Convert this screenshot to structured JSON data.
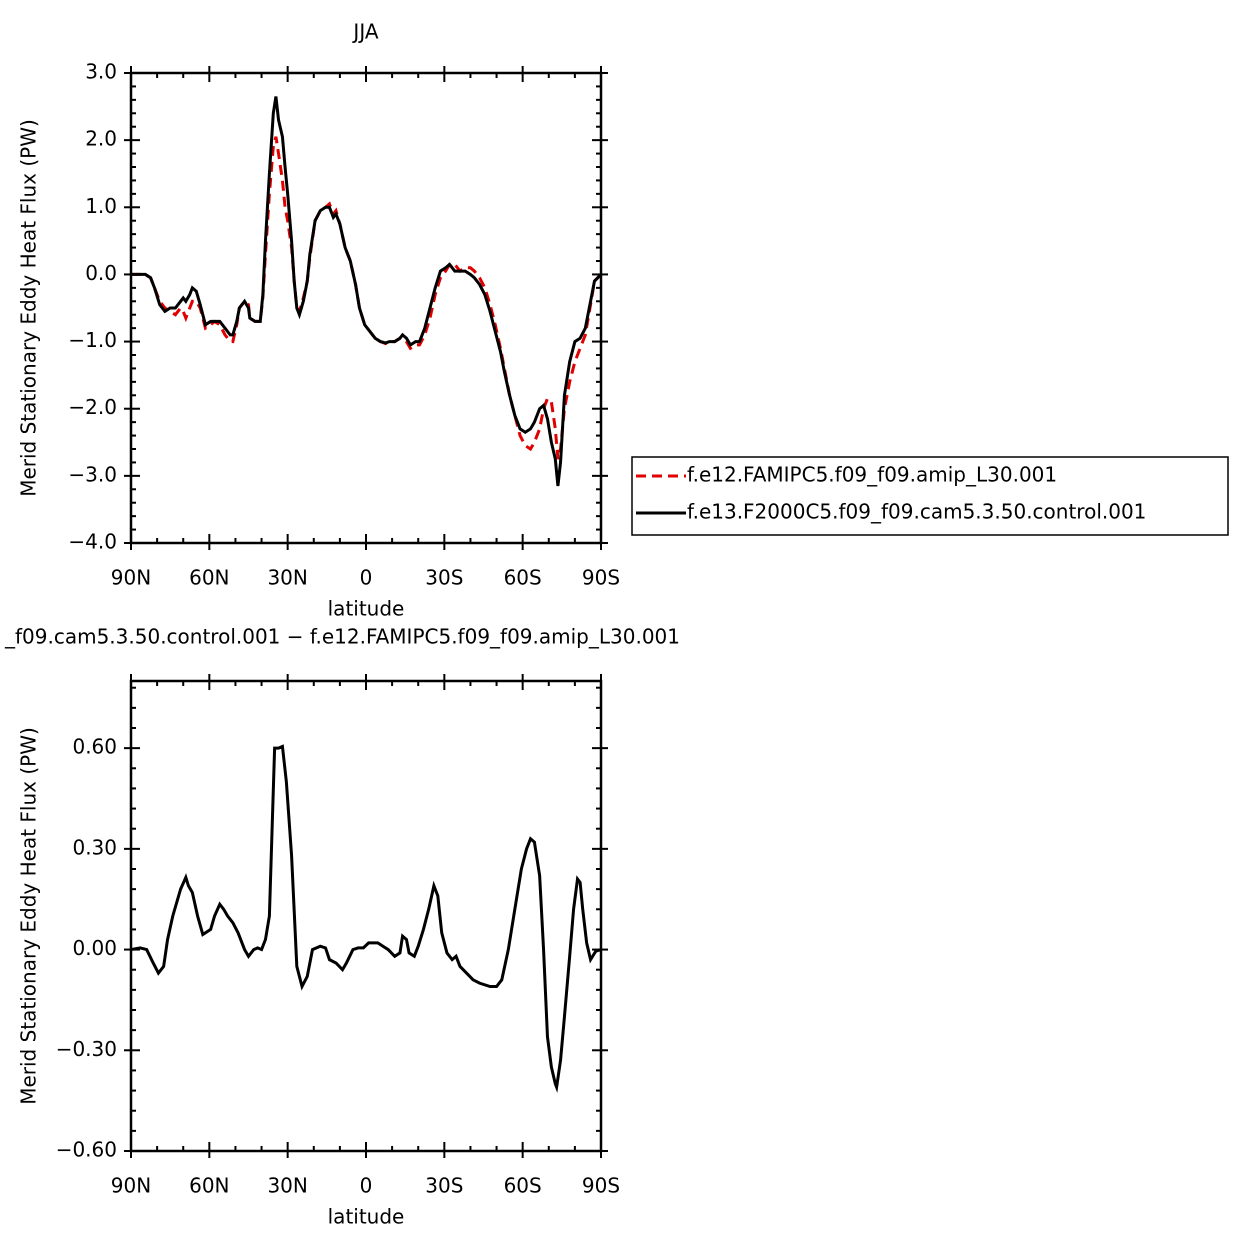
{
  "chart_data": [
    {
      "type": "line",
      "title": "JJA",
      "ylabel": "Merid Stationary Eddy Heat Flux (PW)",
      "xlabel": "latitude",
      "xlim": [
        90,
        -90
      ],
      "xticks": [
        {
          "value": 90,
          "label": "90N"
        },
        {
          "value": 60,
          "label": "60N"
        },
        {
          "value": 30,
          "label": "30N"
        },
        0,
        {
          "value": -30,
          "label": "30S"
        },
        {
          "value": -60,
          "label": "60S"
        },
        {
          "value": -90,
          "label": "90S"
        }
      ],
      "ylim": [
        -4,
        3
      ],
      "yticks": [
        {
          "value": 3,
          "label": "3.0"
        },
        {
          "value": 2,
          "label": "2.0"
        },
        {
          "value": 1,
          "label": "1.0"
        },
        {
          "value": 0,
          "label": "0.0"
        },
        {
          "value": -1,
          "label": "−1.0"
        },
        {
          "value": -2,
          "label": "−2.0"
        },
        {
          "value": -3,
          "label": "−3.0"
        },
        {
          "value": -4,
          "label": "−4.0"
        }
      ],
      "legend": "right",
      "x": [
        90,
        84.5,
        82.5,
        81,
        79,
        77,
        75,
        73,
        71,
        70,
        69,
        67.5,
        66.5,
        65,
        63.5,
        61.5,
        59.5,
        58,
        56,
        54,
        52,
        51,
        49.5,
        48.5,
        46.5,
        45,
        44.5,
        42.5,
        40.5,
        39.5,
        38.5,
        37,
        35.5,
        34.5,
        33.5,
        32,
        31,
        30,
        28.5,
        27.5,
        26.5,
        25.5,
        24,
        22.5,
        21.5,
        19.5,
        17.5,
        15.5,
        14,
        12.5,
        11.5,
        10,
        8,
        6,
        4,
        2.5,
        0.5,
        -1.5,
        -3.5,
        -5.5,
        -7.5,
        -9,
        -11,
        -13,
        -14,
        -15.5,
        -17,
        -19,
        -20.5,
        -22.5,
        -24.5,
        -26.5,
        -28.5,
        -30.5,
        -32,
        -34,
        -36,
        -38,
        -40,
        -41.5,
        -43.5,
        -45.5,
        -47.5,
        -49.5,
        -51.5,
        -53,
        -55,
        -57,
        -59,
        -61,
        -63,
        -64.5,
        -66.5,
        -68,
        -69.5,
        -71,
        -72.5,
        -73.5,
        -74.5,
        -76,
        -78,
        -80,
        -82,
        -84,
        -86,
        -87.5,
        -90
      ],
      "series": [
        {
          "name": "f.e12.FAMIPC5.f09_f09.amip_L30.001",
          "color": "#e00000",
          "line_style": "dashed",
          "values": [
            0,
            0,
            -0.05,
            -0.2,
            -0.4,
            -0.5,
            -0.55,
            -0.6,
            -0.5,
            -0.55,
            -0.65,
            -0.5,
            -0.4,
            -0.4,
            -0.5,
            -0.8,
            -0.75,
            -0.7,
            -0.75,
            -0.9,
            -1.0,
            -1.0,
            -0.75,
            -0.5,
            -0.4,
            -0.45,
            -0.65,
            -0.7,
            -0.7,
            -0.35,
            0.3,
            1.2,
            1.9,
            2.05,
            1.8,
            1.4,
            1.0,
            0.8,
            0.4,
            -0.1,
            -0.5,
            -0.55,
            -0.35,
            -0.1,
            0.25,
            0.8,
            0.95,
            1.0,
            1.05,
            0.9,
            0.95,
            0.75,
            0.4,
            0.2,
            -0.15,
            -0.5,
            -0.75,
            -0.85,
            -0.95,
            -1.0,
            -1.03,
            -1.0,
            -1.0,
            -0.95,
            -0.95,
            -1.0,
            -1.1,
            -1.05,
            -1.05,
            -0.9,
            -0.65,
            -0.3,
            -0.05,
            0.05,
            0.15,
            0.15,
            0.05,
            0.1,
            0.1,
            0.05,
            -0.05,
            -0.2,
            -0.45,
            -0.75,
            -1.1,
            -1.4,
            -1.8,
            -2.1,
            -2.4,
            -2.55,
            -2.6,
            -2.5,
            -2.3,
            -2.0,
            -1.85,
            -1.9,
            -2.3,
            -2.75,
            -2.6,
            -2.0,
            -1.6,
            -1.3,
            -1.1,
            -0.9,
            -0.45,
            -0.1,
            0
          ]
        },
        {
          "name": "f.e13.F2000C5.f09_f09.cam5.3.50.control.001",
          "color": "#000000",
          "line_style": "solid",
          "values": [
            0,
            0,
            -0.05,
            -0.2,
            -0.45,
            -0.55,
            -0.5,
            -0.5,
            -0.4,
            -0.35,
            -0.4,
            -0.3,
            -0.2,
            -0.25,
            -0.45,
            -0.75,
            -0.7,
            -0.7,
            -0.7,
            -0.8,
            -0.9,
            -0.9,
            -0.7,
            -0.5,
            -0.4,
            -0.5,
            -0.65,
            -0.7,
            -0.7,
            -0.3,
            0.5,
            1.5,
            2.4,
            2.65,
            2.3,
            2.05,
            1.6,
            1.2,
            0.5,
            -0.1,
            -0.5,
            -0.6,
            -0.4,
            -0.1,
            0.3,
            0.8,
            0.95,
            1.0,
            1.0,
            0.85,
            0.9,
            0.75,
            0.4,
            0.2,
            -0.15,
            -0.5,
            -0.75,
            -0.85,
            -0.95,
            -1.0,
            -1.02,
            -1.0,
            -1.0,
            -0.95,
            -0.9,
            -0.95,
            -1.05,
            -1.0,
            -1.0,
            -0.8,
            -0.5,
            -0.2,
            0.05,
            0.1,
            0.15,
            0.05,
            0.05,
            0.05,
            0.0,
            -0.05,
            -0.15,
            -0.3,
            -0.55,
            -0.85,
            -1.15,
            -1.45,
            -1.8,
            -2.1,
            -2.3,
            -2.35,
            -2.3,
            -2.2,
            -2.0,
            -1.95,
            -2.15,
            -2.5,
            -2.75,
            -3.15,
            -2.8,
            -1.8,
            -1.3,
            -1.0,
            -0.95,
            -0.8,
            -0.4,
            -0.1,
            0
          ]
        }
      ]
    },
    {
      "type": "line",
      "title": "_f09.cam5.3.50.control.001 − f.e12.FAMIPC5.f09_f09.amip_L30.001",
      "ylabel": "Merid Stationary Eddy Heat Flux (PW)",
      "xlabel": "latitude",
      "xlim": [
        90,
        -90
      ],
      "xticks": [
        {
          "value": 90,
          "label": "90N"
        },
        {
          "value": 60,
          "label": "60N"
        },
        {
          "value": 30,
          "label": "30N"
        },
        0,
        {
          "value": -30,
          "label": "30S"
        },
        {
          "value": -60,
          "label": "60S"
        },
        {
          "value": -90,
          "label": "90S"
        }
      ],
      "ylim": [
        -0.6,
        0.8
      ],
      "yticks": [
        {
          "value": 0.6,
          "label": "0.60"
        },
        {
          "value": 0.3,
          "label": "0.30"
        },
        {
          "value": 0,
          "label": "0.00"
        },
        {
          "value": -0.3,
          "label": "−0.30"
        },
        {
          "value": -0.6,
          "label": "−0.60"
        }
      ],
      "x": [
        90,
        86.5,
        84,
        81.5,
        79.5,
        77.5,
        76,
        74,
        71,
        69,
        68,
        66.5,
        64.5,
        62.5,
        59.5,
        58,
        56,
        54.5,
        53,
        51,
        49,
        46.5,
        45,
        43,
        41.5,
        40,
        38.5,
        37,
        35,
        33.5,
        32,
        30.5,
        28.5,
        26.5,
        24.5,
        22.5,
        20.5,
        17.5,
        15.5,
        14,
        11.5,
        9,
        7.5,
        5,
        3,
        1,
        -1,
        -2.5,
        -4.5,
        -6.5,
        -8.5,
        -11,
        -13,
        -14,
        -15.5,
        -16.5,
        -18.5,
        -20,
        -22,
        -24,
        -26,
        -27.5,
        -29,
        -31,
        -33,
        -34.5,
        -36,
        -38.5,
        -41,
        -43.5,
        -47.5,
        -50,
        -52,
        -54.5,
        -57,
        -59.5,
        -61.5,
        -63,
        -64.5,
        -66.5,
        -68,
        -69.5,
        -71,
        -72.5,
        -73,
        -74.5,
        -76,
        -78,
        -79.5,
        -81,
        -82,
        -83,
        -84.5,
        -86,
        -88,
        -90
      ],
      "series": [
        {
          "color": "#000000",
          "line_style": "solid",
          "values": [
            0,
            0.005,
            0,
            -0.04,
            -0.07,
            -0.05,
            0.03,
            0.1,
            0.18,
            0.215,
            0.19,
            0.17,
            0.1,
            0.045,
            0.06,
            0.1,
            0.135,
            0.12,
            0.1,
            0.08,
            0.05,
            0.0,
            -0.02,
            0.0,
            0.005,
            0.0,
            0.03,
            0.1,
            0.6,
            0.6,
            0.605,
            0.5,
            0.28,
            -0.05,
            -0.11,
            -0.08,
            0.0,
            0.01,
            0.005,
            -0.03,
            -0.04,
            -0.06,
            -0.04,
            0.0,
            0.005,
            0.005,
            0.02,
            0.02,
            0.02,
            0.01,
            0.0,
            -0.02,
            -0.01,
            0.04,
            0.03,
            -0.01,
            -0.02,
            0.01,
            0.06,
            0.12,
            0.19,
            0.16,
            0.05,
            -0.01,
            -0.03,
            -0.02,
            -0.05,
            -0.07,
            -0.09,
            -0.1,
            -0.11,
            -0.11,
            -0.09,
            0.0,
            0.12,
            0.24,
            0.3,
            0.33,
            0.32,
            0.22,
            0.0,
            -0.26,
            -0.35,
            -0.4,
            -0.41,
            -0.33,
            -0.2,
            -0.02,
            0.12,
            0.21,
            0.2,
            0.12,
            0.02,
            -0.03,
            -0.005,
            0
          ]
        }
      ]
    }
  ]
}
